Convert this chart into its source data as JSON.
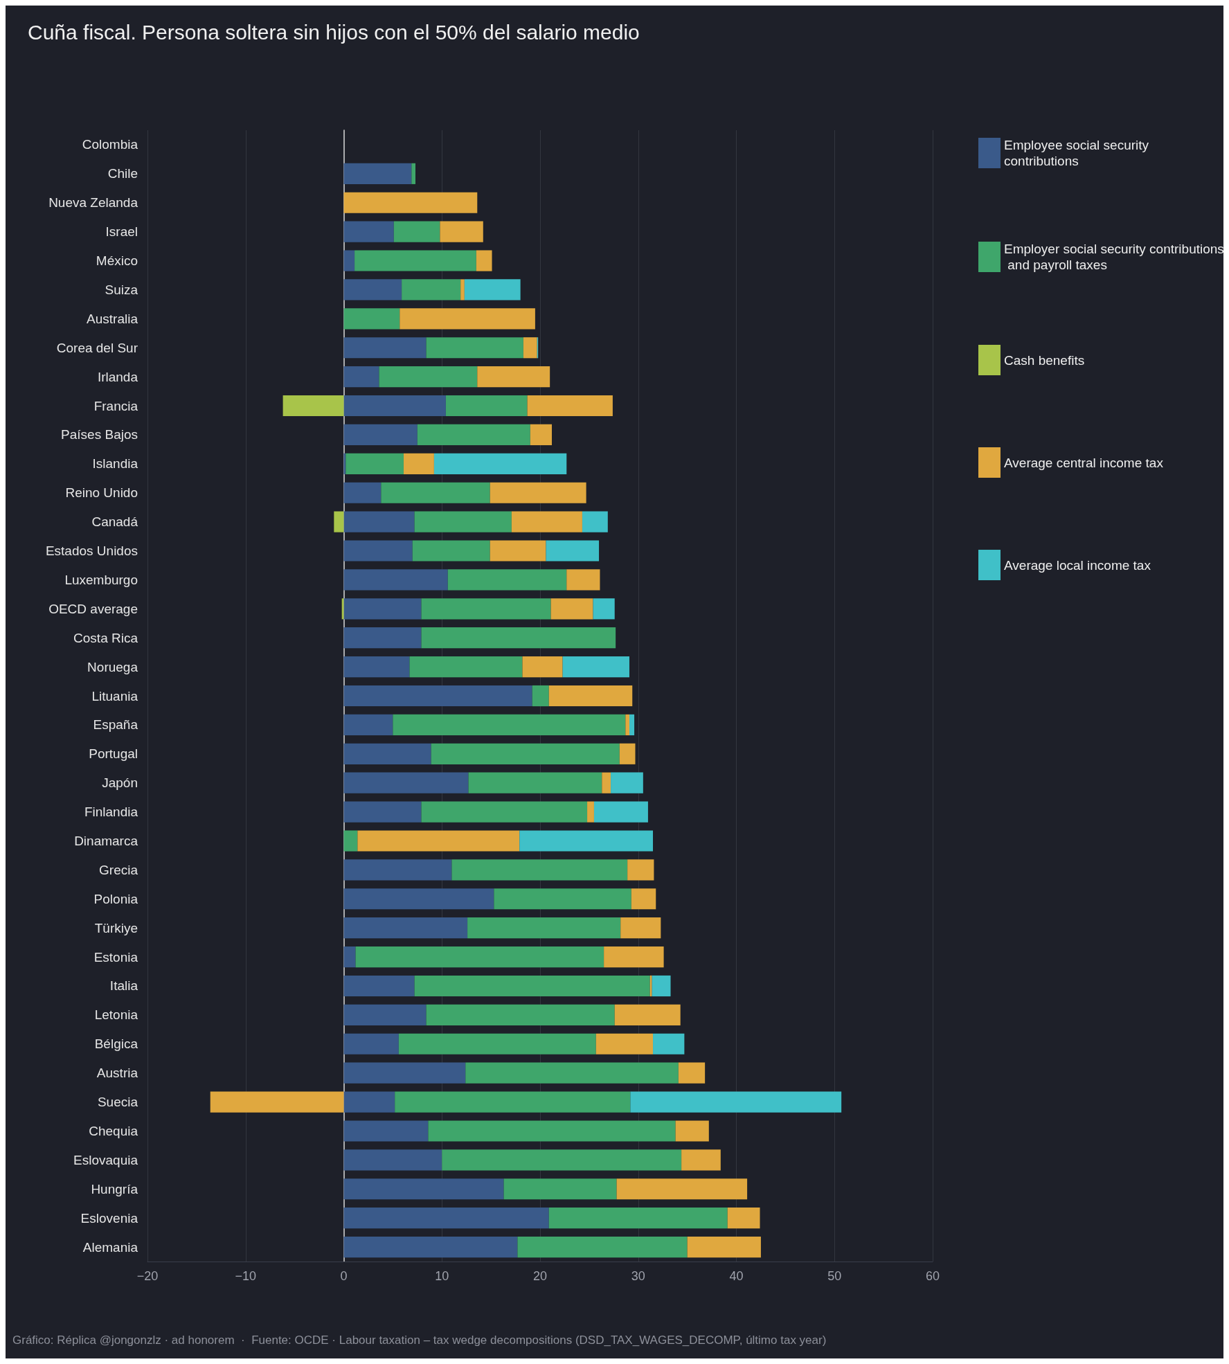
{
  "chart_data": {
    "type": "bar",
    "orientation": "horizontal",
    "stacked": true,
    "title": "Cuña fiscal. Persona soltera sin hijos con el 50% del salario medio",
    "categories": [
      "Colombia",
      "Chile",
      "Nueva Zelanda",
      "Israel",
      "México",
      "Suiza",
      "Australia",
      "Corea del Sur",
      "Irlanda",
      "Francia",
      "Países Bajos",
      "Islandia",
      "Reino Unido",
      "Canadá",
      "Estados Unidos",
      "Luxemburgo",
      "OECD average",
      "Costa Rica",
      "Noruega",
      "Lituania",
      "España",
      "Portugal",
      "Japón",
      "Finlandia",
      "Dinamarca",
      "Grecia",
      "Polonia",
      "Türkiye",
      "Estonia",
      "Italia",
      "Letonia",
      "Bélgica",
      "Austria",
      "Suecia",
      "Chequia",
      "Eslovaquia",
      "Hungría",
      "Eslovenia",
      "Alemania"
    ],
    "series": [
      {
        "name": "Employee social security contributions",
        "color": "#3a5a8a",
        "values": [
          null,
          6.9,
          null,
          5.1,
          1.1,
          5.9,
          null,
          8.4,
          3.6,
          10.4,
          7.5,
          0.2,
          3.8,
          7.2,
          7.0,
          10.6,
          7.9,
          7.9,
          6.7,
          19.2,
          5.0,
          8.9,
          12.7,
          7.9,
          null,
          11.0,
          15.3,
          12.6,
          1.2,
          7.2,
          8.4,
          5.6,
          12.4,
          5.2,
          8.6,
          10.0,
          16.3,
          20.9,
          17.7
        ]
      },
      {
        "name": "Employer social security contributions and payroll taxes",
        "color": "#3fa66b",
        "values": [
          null,
          0.4,
          null,
          4.7,
          12.4,
          6.0,
          5.7,
          9.9,
          10.0,
          8.3,
          11.5,
          5.9,
          11.1,
          9.9,
          7.9,
          12.1,
          13.2,
          19.8,
          11.5,
          1.7,
          23.7,
          19.2,
          13.6,
          16.9,
          1.4,
          17.9,
          14.0,
          15.6,
          25.3,
          24.0,
          19.2,
          20.1,
          21.7,
          24.0,
          25.2,
          24.4,
          11.5,
          18.2,
          17.3
        ]
      },
      {
        "name": "Cash benefits",
        "color": "#a8c44a",
        "values": [
          null,
          null,
          null,
          null,
          null,
          null,
          null,
          null,
          null,
          -6.2,
          null,
          null,
          null,
          -1.0,
          null,
          null,
          -0.2,
          null,
          null,
          null,
          null,
          null,
          null,
          null,
          null,
          null,
          null,
          null,
          null,
          null,
          null,
          null,
          null,
          null,
          null,
          null,
          null,
          null,
          null
        ]
      },
      {
        "name": "Average central income tax",
        "color": "#e0a83f",
        "values": [
          null,
          null,
          13.6,
          4.4,
          1.6,
          0.4,
          13.8,
          1.4,
          7.4,
          8.7,
          2.2,
          3.1,
          9.8,
          7.2,
          5.7,
          3.4,
          4.3,
          null,
          4.1,
          8.5,
          0.4,
          1.6,
          0.9,
          0.7,
          16.5,
          2.7,
          2.5,
          4.1,
          6.1,
          0.2,
          6.7,
          5.8,
          2.7,
          -13.6,
          3.4,
          4.0,
          13.3,
          3.3,
          7.5
        ]
      },
      {
        "name": "Average local income tax",
        "color": "#40c0c8",
        "values": [
          null,
          null,
          null,
          null,
          null,
          5.7,
          null,
          0.1,
          null,
          null,
          null,
          13.5,
          null,
          2.6,
          5.4,
          null,
          2.2,
          null,
          6.8,
          null,
          0.5,
          null,
          3.3,
          5.5,
          13.6,
          null,
          null,
          null,
          null,
          1.9,
          null,
          3.2,
          null,
          21.5,
          null,
          null,
          null,
          null,
          null
        ]
      }
    ],
    "xlim": [
      -20,
      60
    ],
    "xticks": [
      {
        "value": -20,
        "label": "−20"
      },
      {
        "value": -10,
        "label": "−10"
      },
      0,
      10,
      20,
      30,
      40,
      50,
      60
    ],
    "grid": "x",
    "legend": "right",
    "annotations": [
      "Gráfico: Réplica @jongonzlz · ad honorem  ·  Fuente: OCDE · Labour taxation – tax wedge decompositions (DSD_TAX_WAGES_DECOMP, último tax year)"
    ]
  }
}
